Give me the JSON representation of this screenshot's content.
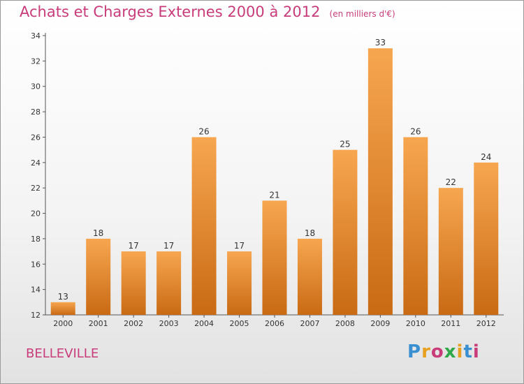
{
  "header": {
    "title": "Achats et Charges Externes 2000 à 2012",
    "subtitle": "(en milliers d'€)"
  },
  "footer": {
    "place": "BELLEVILLE",
    "logo": "Proxiti"
  },
  "colors": {
    "title": "#c83c7a",
    "bar_top": "#f7a650",
    "bar_bottom": "#c96a14"
  },
  "chart_data": {
    "type": "bar",
    "title": "Achats et Charges Externes 2000 à 2012",
    "subtitle": "(en milliers d'€)",
    "categories": [
      "2000",
      "2001",
      "2002",
      "2003",
      "2004",
      "2005",
      "2006",
      "2007",
      "2008",
      "2009",
      "2010",
      "2011",
      "2012"
    ],
    "values": [
      13,
      18,
      17,
      17,
      26,
      17,
      21,
      18,
      25,
      33,
      26,
      22,
      24
    ],
    "ylim": [
      12,
      34
    ],
    "yticks": [
      12,
      14,
      16,
      18,
      20,
      22,
      24,
      26,
      28,
      30,
      32,
      34
    ],
    "grid": false,
    "legend": "none"
  }
}
